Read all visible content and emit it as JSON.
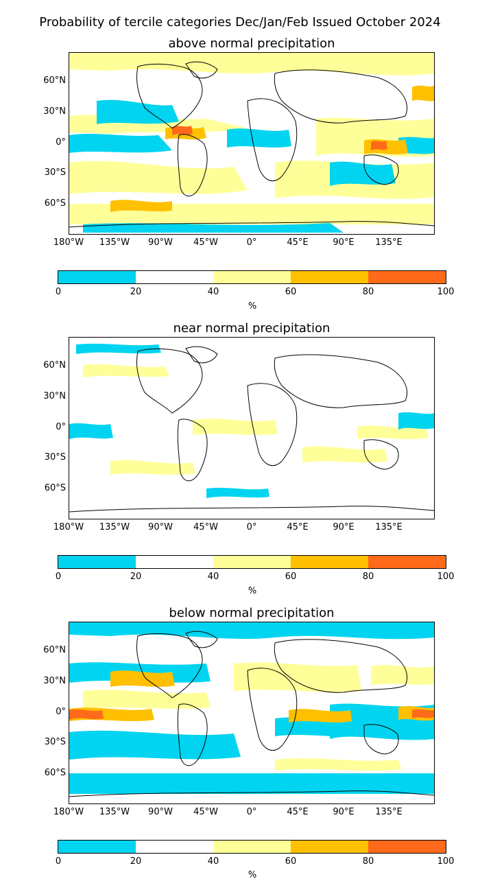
{
  "suptitle": "Probability of tercile categories Dec/Jan/Feb Issued October 2024",
  "colors": {
    "c0_20": "#00d4f0",
    "c20_40": "#ffffff",
    "c40_60": "#ffff99",
    "c60_80": "#ffc000",
    "c80_100": "#ff6a1a",
    "land_outline": "#000000"
  },
  "lat_labels": [
    "60°N",
    "30°N",
    "0°",
    "30°S",
    "60°S"
  ],
  "lon_labels": [
    "180°W",
    "135°W",
    "90°W",
    "45°W",
    "0°",
    "45°E",
    "90°E",
    "135°E"
  ],
  "colorbar": {
    "ticks": [
      "0",
      "20",
      "40",
      "60",
      "80",
      "100"
    ],
    "unit": "%"
  },
  "panels": [
    {
      "title": "above normal precipitation"
    },
    {
      "title": "near normal precipitation"
    },
    {
      "title": "below normal precipitation"
    }
  ]
}
